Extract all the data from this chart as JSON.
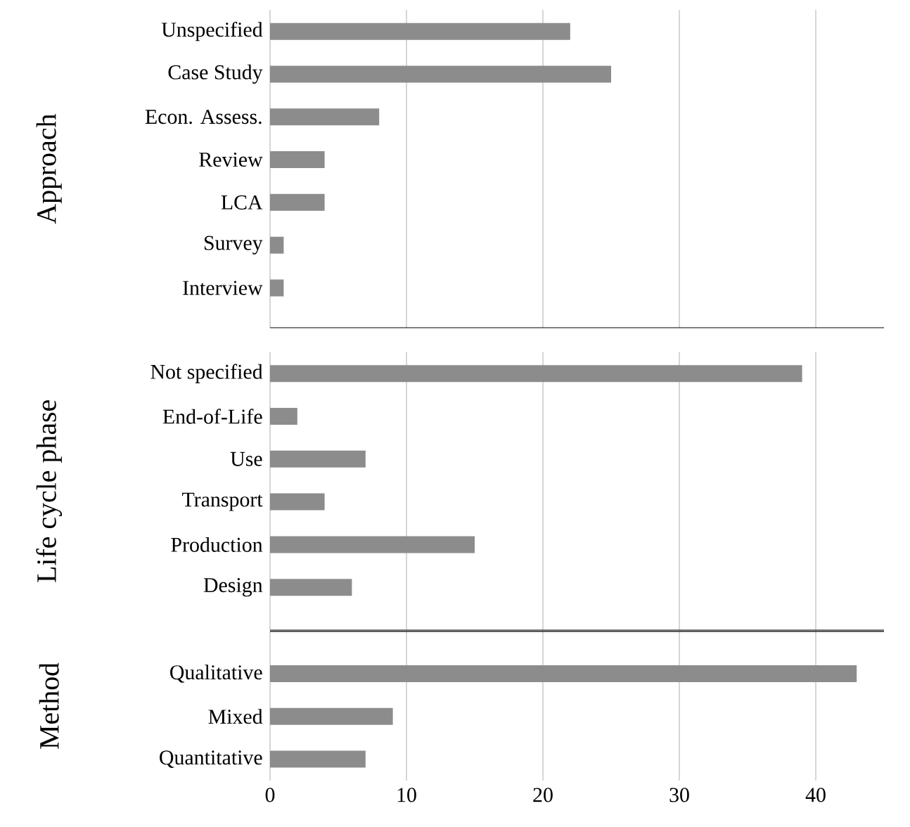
{
  "chart_data": [
    {
      "type": "bar",
      "orientation": "horizontal",
      "ylabel": "Approach",
      "categories": [
        "Unspecified",
        "Case Study",
        "Econ. Assess.",
        "Review",
        "LCA",
        "Survey",
        "Interview"
      ],
      "values": [
        22,
        25,
        8,
        4,
        4,
        1,
        1
      ],
      "color": "#8c8c8c",
      "xlim": [
        0,
        45
      ],
      "xticks": [
        0,
        10,
        20,
        30,
        40
      ],
      "grid": "x",
      "tick_labels": "y"
    },
    {
      "type": "bar",
      "orientation": "horizontal",
      "ylabel": "Life cycle phase",
      "categories": [
        "Not specified",
        "End-of-Life",
        "Use",
        "Transport",
        "Production",
        "Design"
      ],
      "values": [
        39,
        2,
        7,
        4,
        15,
        6
      ],
      "color": "#8c8c8c",
      "xlim": [
        0,
        45
      ],
      "xticks": [
        0,
        10,
        20,
        30,
        40
      ],
      "grid": "x",
      "tick_labels": "y"
    },
    {
      "type": "bar",
      "orientation": "horizontal",
      "ylabel": "Method",
      "categories": [
        "Qualitative",
        "Mixed",
        "Quantitative"
      ],
      "values": [
        43,
        9,
        7
      ],
      "color": "#8c8c8c",
      "xlim": [
        0,
        45
      ],
      "xticks": [
        0,
        10,
        20,
        30,
        40
      ],
      "grid": "x"
    }
  ]
}
